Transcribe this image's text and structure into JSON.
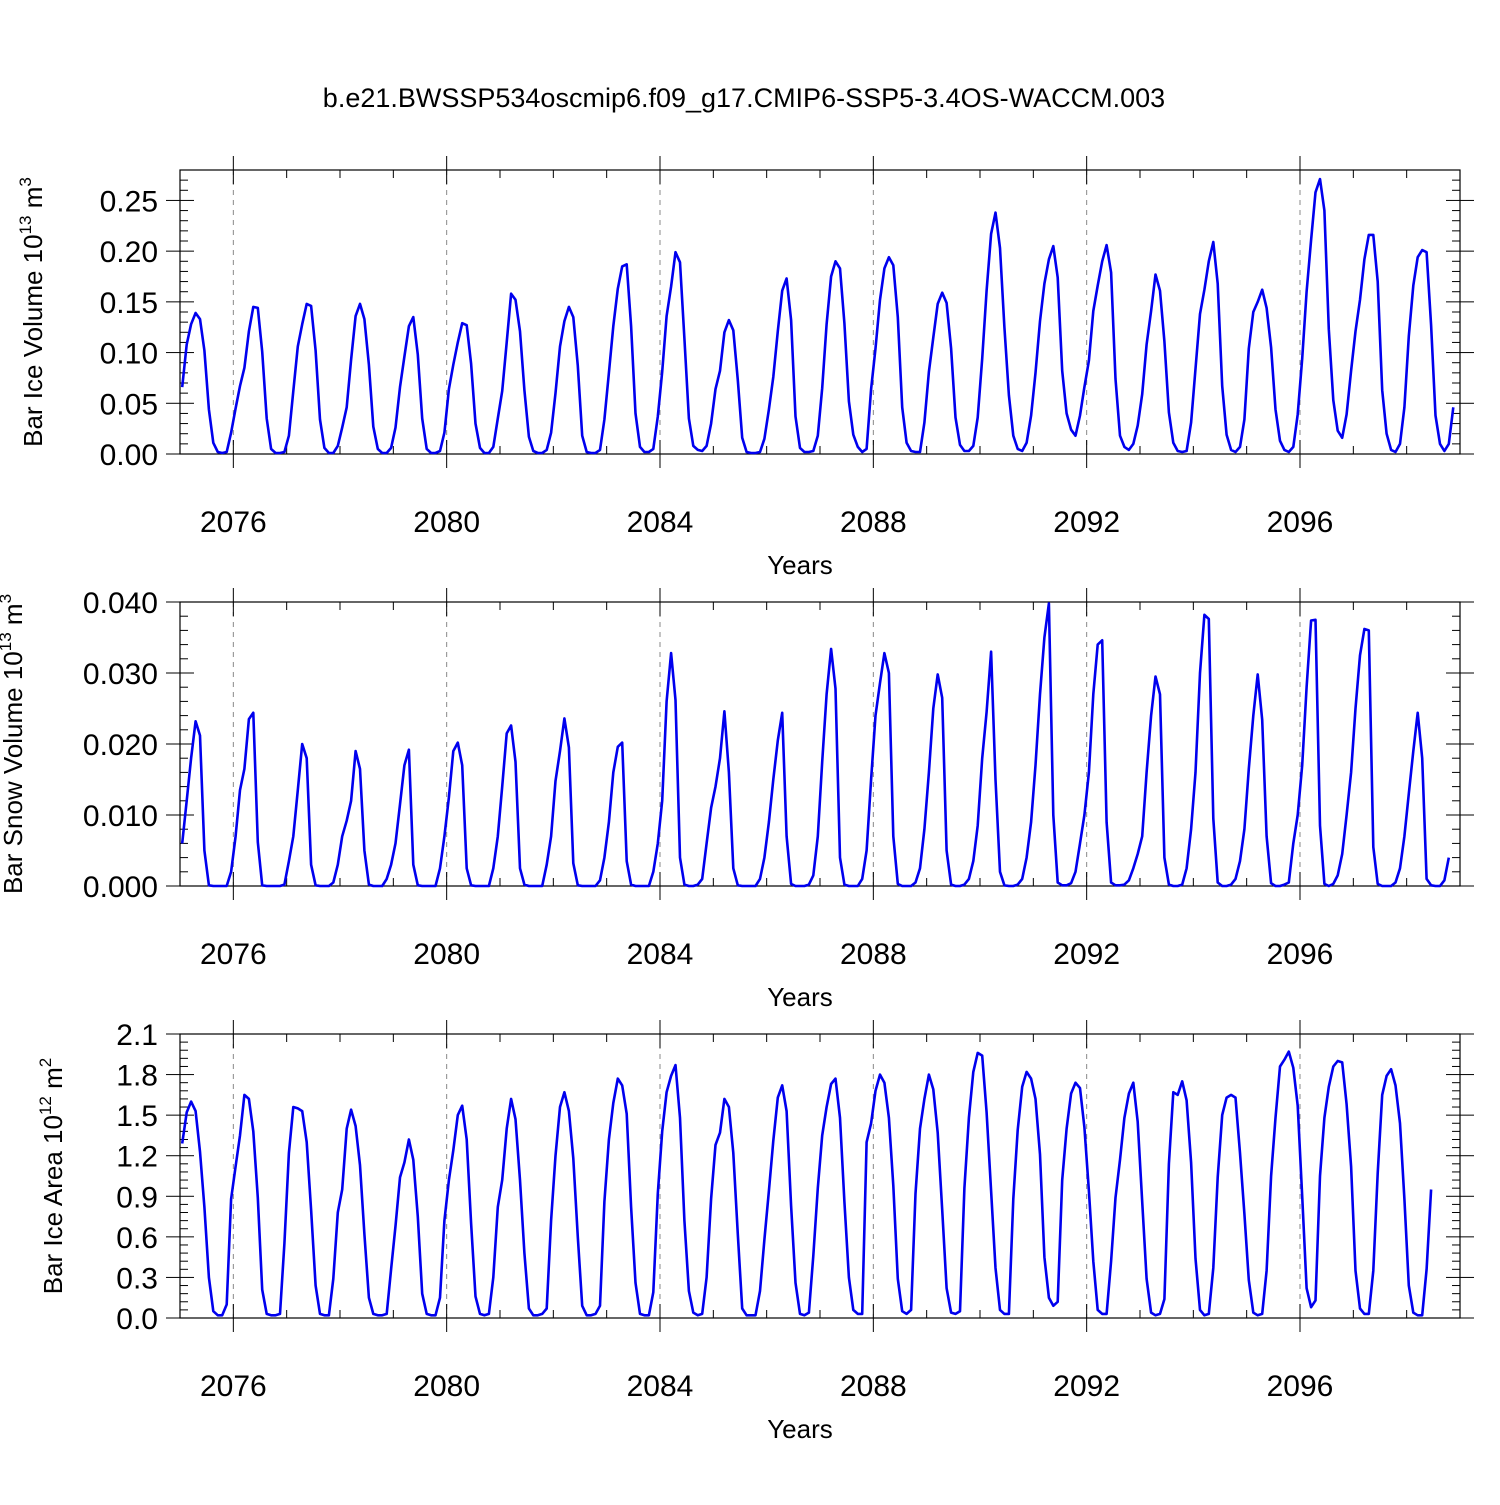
{
  "title": "b.e21.BWSSP534oscmip6.f09_g17.CMIP6-SSP5-3.4OS-WACCM.003",
  "chart_data": [
    {
      "type": "line",
      "ylabel": "Bar Ice Volume 10",
      "ylabel_exp": "13",
      "ylabel_unit": " m",
      "ylabel_unit_exp": "3",
      "xlabel": "Years",
      "xlim": [
        2075.0,
        2099.0
      ],
      "ylim": [
        0.0,
        0.28
      ],
      "yticks": [
        0.0,
        0.05,
        0.1,
        0.15,
        0.2,
        0.25
      ],
      "yticklabels": [
        "0.00",
        "0.05",
        "0.10",
        "0.15",
        "0.20",
        "0.25"
      ],
      "xticks": [
        2076,
        2080,
        2084,
        2088,
        2092,
        2096
      ],
      "xticklabels": [
        "2076",
        "2080",
        "2084",
        "2088",
        "2092",
        "2096"
      ],
      "color": "#0000ee",
      "series": [
        {
          "name": "Bar Ice Volume",
          "x_start": 2075.0417,
          "x_step": 0.08333,
          "values": [
            0.066,
            0.108,
            0.128,
            0.139,
            0.133,
            0.102,
            0.044,
            0.011,
            0.002,
            0.001,
            0.002,
            0.021,
            0.045,
            0.067,
            0.085,
            0.121,
            0.145,
            0.144,
            0.101,
            0.035,
            0.005,
            0.001,
            0.001,
            0.002,
            0.018,
            0.062,
            0.106,
            0.128,
            0.148,
            0.146,
            0.102,
            0.034,
            0.006,
            0.001,
            0.001,
            0.008,
            0.026,
            0.046,
            0.093,
            0.136,
            0.148,
            0.133,
            0.088,
            0.027,
            0.005,
            0.001,
            0.001,
            0.006,
            0.026,
            0.066,
            0.096,
            0.126,
            0.135,
            0.098,
            0.035,
            0.005,
            0.001,
            0.001,
            0.003,
            0.021,
            0.064,
            0.088,
            0.11,
            0.129,
            0.127,
            0.089,
            0.03,
            0.006,
            0.001,
            0.001,
            0.007,
            0.035,
            0.062,
            0.11,
            0.158,
            0.152,
            0.121,
            0.063,
            0.017,
            0.003,
            0.001,
            0.001,
            0.004,
            0.021,
            0.06,
            0.106,
            0.131,
            0.145,
            0.135,
            0.087,
            0.018,
            0.002,
            0.001,
            0.001,
            0.004,
            0.034,
            0.08,
            0.126,
            0.163,
            0.185,
            0.187,
            0.126,
            0.04,
            0.007,
            0.002,
            0.002,
            0.005,
            0.037,
            0.081,
            0.136,
            0.165,
            0.199,
            0.189,
            0.114,
            0.035,
            0.008,
            0.004,
            0.003,
            0.008,
            0.03,
            0.064,
            0.082,
            0.12,
            0.132,
            0.122,
            0.073,
            0.016,
            0.002,
            0.001,
            0.001,
            0.002,
            0.015,
            0.044,
            0.076,
            0.121,
            0.161,
            0.173,
            0.132,
            0.037,
            0.006,
            0.002,
            0.002,
            0.003,
            0.018,
            0.065,
            0.128,
            0.175,
            0.19,
            0.183,
            0.129,
            0.052,
            0.019,
            0.007,
            0.002,
            0.005,
            0.064,
            0.104,
            0.152,
            0.183,
            0.194,
            0.186,
            0.135,
            0.046,
            0.011,
            0.003,
            0.002,
            0.002,
            0.031,
            0.081,
            0.115,
            0.148,
            0.159,
            0.149,
            0.104,
            0.036,
            0.009,
            0.003,
            0.003,
            0.008,
            0.036,
            0.094,
            0.161,
            0.217,
            0.238,
            0.203,
            0.125,
            0.058,
            0.018,
            0.005,
            0.003,
            0.011,
            0.038,
            0.08,
            0.131,
            0.168,
            0.192,
            0.205,
            0.174,
            0.082,
            0.04,
            0.024,
            0.018,
            0.038,
            0.066,
            0.092,
            0.141,
            0.166,
            0.19,
            0.206,
            0.179,
            0.074,
            0.018,
            0.007,
            0.004,
            0.01,
            0.028,
            0.059,
            0.108,
            0.141,
            0.177,
            0.161,
            0.111,
            0.041,
            0.011,
            0.003,
            0.002,
            0.003,
            0.031,
            0.084,
            0.138,
            0.162,
            0.19,
            0.209,
            0.168,
            0.067,
            0.019,
            0.004,
            0.002,
            0.007,
            0.034,
            0.104,
            0.14,
            0.15,
            0.162,
            0.144,
            0.105,
            0.044,
            0.013,
            0.004,
            0.002,
            0.007,
            0.039,
            0.094,
            0.16,
            0.211,
            0.258,
            0.271,
            0.24,
            0.123,
            0.053,
            0.023,
            0.016,
            0.039,
            0.082,
            0.121,
            0.152,
            0.192,
            0.216,
            0.216,
            0.17,
            0.063,
            0.02,
            0.004,
            0.002,
            0.01,
            0.046,
            0.116,
            0.166,
            0.194,
            0.201,
            0.199,
            0.127,
            0.038,
            0.01,
            0.003,
            0.01,
            0.046
          ]
        }
      ]
    },
    {
      "type": "line",
      "ylabel": "Bar Snow Volume 10",
      "ylabel_exp": "13",
      "ylabel_unit": " m",
      "ylabel_unit_exp": "3",
      "xlabel": "Years",
      "xlim": [
        2075.0,
        2099.0
      ],
      "ylim": [
        0.0,
        0.04
      ],
      "yticks": [
        0.0,
        0.01,
        0.02,
        0.03,
        0.04
      ],
      "yticklabels": [
        "0.000",
        "0.010",
        "0.020",
        "0.030",
        "0.040"
      ],
      "xticks": [
        2076,
        2080,
        2084,
        2088,
        2092,
        2096
      ],
      "xticklabels": [
        "2076",
        "2080",
        "2084",
        "2088",
        "2092",
        "2096"
      ],
      "color": "#0000ee",
      "series": [
        {
          "name": "Bar Snow Volume",
          "x_start": 2075.0417,
          "x_step": 0.08333,
          "values": [
            0.006,
            0.012,
            0.018,
            0.0232,
            0.0212,
            0.005,
            0.0001,
            0.0,
            0.0,
            0.0,
            0.0,
            0.002,
            0.007,
            0.0135,
            0.0165,
            0.0235,
            0.0244,
            0.0062,
            0.0001,
            0.0,
            0.0,
            0.0,
            0.0,
            0.0002,
            0.0035,
            0.007,
            0.0135,
            0.02,
            0.018,
            0.003,
            0.0001,
            0.0,
            0.0,
            0.0,
            0.0005,
            0.003,
            0.007,
            0.0092,
            0.012,
            0.019,
            0.0165,
            0.005,
            0.0002,
            0.0,
            0.0,
            0.0,
            0.001,
            0.003,
            0.006,
            0.0115,
            0.017,
            0.0192,
            0.003,
            0.0001,
            0.0,
            0.0,
            0.0,
            0.0,
            0.0025,
            0.007,
            0.0125,
            0.019,
            0.0202,
            0.017,
            0.0025,
            0.0001,
            0.0,
            0.0,
            0.0,
            0.0,
            0.0025,
            0.007,
            0.014,
            0.0215,
            0.0226,
            0.0175,
            0.0025,
            0.0002,
            0.0,
            0.0,
            0.0,
            0.0,
            0.003,
            0.007,
            0.0148,
            0.019,
            0.0236,
            0.0195,
            0.0032,
            0.0001,
            0.0,
            0.0,
            0.0,
            0.0,
            0.0008,
            0.004,
            0.009,
            0.016,
            0.0196,
            0.0202,
            0.0035,
            0.0002,
            0.0,
            0.0,
            0.0,
            0.0,
            0.002,
            0.006,
            0.012,
            0.026,
            0.0328,
            0.0262,
            0.004,
            0.0002,
            0.0,
            0.0,
            0.0002,
            0.001,
            0.006,
            0.011,
            0.014,
            0.018,
            0.0246,
            0.016,
            0.0025,
            0.0001,
            0.0,
            0.0,
            0.0,
            0.0,
            0.001,
            0.004,
            0.009,
            0.015,
            0.0205,
            0.0244,
            0.007,
            0.0003,
            0.0,
            0.0,
            0.0,
            0.0002,
            0.0015,
            0.007,
            0.0175,
            0.027,
            0.0334,
            0.0278,
            0.004,
            0.0002,
            0.0,
            0.0,
            0.0,
            0.001,
            0.005,
            0.015,
            0.024,
            0.0286,
            0.0328,
            0.03,
            0.007,
            0.0003,
            0.0,
            0.0,
            0.0,
            0.0005,
            0.0025,
            0.008,
            0.016,
            0.025,
            0.0298,
            0.0265,
            0.005,
            0.0002,
            0.0,
            0.0,
            0.0002,
            0.001,
            0.0035,
            0.0085,
            0.018,
            0.0245,
            0.033,
            0.015,
            0.002,
            0.0001,
            0.0,
            0.0,
            0.0002,
            0.001,
            0.004,
            0.009,
            0.017,
            0.027,
            0.035,
            0.0398,
            0.01,
            0.0005,
            0.0001,
            0.0001,
            0.0004,
            0.002,
            0.006,
            0.01,
            0.016,
            0.027,
            0.034,
            0.0346,
            0.009,
            0.0005,
            0.0001,
            0.0001,
            0.0002,
            0.0008,
            0.0025,
            0.0045,
            0.007,
            0.016,
            0.024,
            0.0295,
            0.027,
            0.004,
            0.0002,
            0.0,
            0.0,
            0.0002,
            0.0025,
            0.008,
            0.016,
            0.03,
            0.0382,
            0.0376,
            0.0095,
            0.0005,
            0.0,
            0.0,
            0.0002,
            0.001,
            0.0035,
            0.008,
            0.0165,
            0.024,
            0.0298,
            0.0234,
            0.007,
            0.0004,
            0.0,
            0.0,
            0.0002,
            0.0005,
            0.006,
            0.01,
            0.017,
            0.028,
            0.0374,
            0.0375,
            0.0085,
            0.0003,
            0.0,
            0.0003,
            0.0015,
            0.0045,
            0.01,
            0.016,
            0.025,
            0.0325,
            0.0362,
            0.036,
            0.0055,
            0.0003,
            0.0,
            0.0,
            0.0,
            0.0005,
            0.0025,
            0.007,
            0.013,
            0.019,
            0.0244,
            0.018,
            0.001,
            0.0001,
            0.0,
            0.0,
            0.0008,
            0.004
          ]
        }
      ]
    },
    {
      "type": "line",
      "ylabel": "Bar Ice Area 10",
      "ylabel_exp": "12",
      "ylabel_unit": " m",
      "ylabel_unit_exp": "2",
      "xlabel": "Years",
      "xlim": [
        2075.0,
        2099.0
      ],
      "ylim": [
        0.0,
        2.1
      ],
      "yticks": [
        0.0,
        0.3,
        0.6,
        0.9,
        1.2,
        1.5,
        1.8,
        2.1
      ],
      "yticklabels": [
        "0.0",
        "0.3",
        "0.6",
        "0.9",
        "1.2",
        "1.5",
        "1.8",
        "2.1"
      ],
      "xticks": [
        2076,
        2080,
        2084,
        2088,
        2092,
        2096
      ],
      "xticklabels": [
        "2076",
        "2080",
        "2084",
        "2088",
        "2092",
        "2096"
      ],
      "color": "#0000ee",
      "series": [
        {
          "name": "Bar Ice Area",
          "x_start": 2075.0417,
          "x_step": 0.08333,
          "values": [
            1.29,
            1.52,
            1.6,
            1.53,
            1.23,
            0.82,
            0.3,
            0.05,
            0.02,
            0.02,
            0.1,
            0.88,
            1.12,
            1.35,
            1.65,
            1.62,
            1.38,
            0.89,
            0.21,
            0.03,
            0.02,
            0.02,
            0.03,
            0.55,
            1.22,
            1.56,
            1.55,
            1.53,
            1.3,
            0.8,
            0.24,
            0.03,
            0.02,
            0.02,
            0.29,
            0.78,
            0.95,
            1.4,
            1.54,
            1.42,
            1.13,
            0.62,
            0.15,
            0.03,
            0.02,
            0.02,
            0.03,
            0.36,
            0.68,
            1.04,
            1.15,
            1.32,
            1.17,
            0.75,
            0.18,
            0.03,
            0.02,
            0.02,
            0.15,
            0.72,
            1.02,
            1.24,
            1.5,
            1.57,
            1.32,
            0.7,
            0.16,
            0.03,
            0.02,
            0.03,
            0.3,
            0.82,
            1.02,
            1.4,
            1.62,
            1.47,
            1.02,
            0.48,
            0.07,
            0.02,
            0.02,
            0.03,
            0.07,
            0.72,
            1.2,
            1.56,
            1.67,
            1.53,
            1.18,
            0.6,
            0.09,
            0.02,
            0.02,
            0.03,
            0.09,
            0.86,
            1.32,
            1.59,
            1.77,
            1.72,
            1.51,
            0.82,
            0.26,
            0.03,
            0.02,
            0.02,
            0.19,
            0.92,
            1.38,
            1.67,
            1.79,
            1.87,
            1.48,
            0.72,
            0.2,
            0.04,
            0.02,
            0.03,
            0.3,
            0.88,
            1.28,
            1.37,
            1.62,
            1.56,
            1.22,
            0.62,
            0.07,
            0.02,
            0.02,
            0.02,
            0.2,
            0.58,
            0.94,
            1.31,
            1.63,
            1.72,
            1.53,
            0.83,
            0.26,
            0.03,
            0.02,
            0.04,
            0.46,
            0.96,
            1.35,
            1.56,
            1.73,
            1.77,
            1.48,
            0.86,
            0.3,
            0.06,
            0.03,
            0.03,
            1.3,
            1.44,
            1.68,
            1.8,
            1.74,
            1.48,
            0.98,
            0.29,
            0.05,
            0.03,
            0.06,
            0.92,
            1.4,
            1.62,
            1.8,
            1.69,
            1.37,
            0.8,
            0.22,
            0.04,
            0.03,
            0.05,
            0.96,
            1.48,
            1.82,
            1.96,
            1.94,
            1.52,
            0.94,
            0.37,
            0.06,
            0.03,
            0.03,
            0.88,
            1.39,
            1.71,
            1.82,
            1.77,
            1.62,
            1.21,
            0.45,
            0.15,
            0.09,
            0.12,
            1.02,
            1.4,
            1.66,
            1.74,
            1.7,
            1.41,
            0.94,
            0.42,
            0.06,
            0.03,
            0.03,
            0.42,
            0.89,
            1.17,
            1.48,
            1.66,
            1.74,
            1.45,
            0.86,
            0.29,
            0.04,
            0.02,
            0.03,
            0.14,
            1.14,
            1.67,
            1.65,
            1.75,
            1.61,
            1.15,
            0.44,
            0.06,
            0.02,
            0.03,
            0.37,
            1.04,
            1.5,
            1.63,
            1.65,
            1.63,
            1.22,
            0.77,
            0.28,
            0.04,
            0.02,
            0.03,
            0.35,
            1.05,
            1.48,
            1.86,
            1.91,
            1.97,
            1.85,
            1.57,
            0.9,
            0.22,
            0.08,
            0.13,
            1.05,
            1.48,
            1.71,
            1.86,
            1.9,
            1.89,
            1.58,
            1.12,
            0.35,
            0.07,
            0.03,
            0.03,
            0.35,
            1.07,
            1.65,
            1.79,
            1.84,
            1.72,
            1.44,
            0.88,
            0.24,
            0.04,
            0.02,
            0.02,
            0.36,
            0.95
          ]
        }
      ]
    }
  ]
}
